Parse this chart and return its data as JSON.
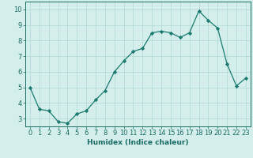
{
  "title": "",
  "xlabel": "Humidex (Indice chaleur)",
  "ylabel": "",
  "x": [
    0,
    1,
    2,
    3,
    4,
    5,
    6,
    7,
    8,
    9,
    10,
    11,
    12,
    13,
    14,
    15,
    16,
    17,
    18,
    19,
    20,
    21,
    22,
    23
  ],
  "y": [
    5.0,
    3.6,
    3.5,
    2.8,
    2.7,
    3.3,
    3.5,
    4.2,
    4.8,
    6.0,
    6.7,
    7.3,
    7.5,
    8.5,
    8.6,
    8.5,
    8.2,
    8.5,
    9.9,
    9.3,
    8.8,
    6.5,
    5.1,
    5.6
  ],
  "line_color": "#1a7a6e",
  "marker": "D",
  "marker_size": 2.2,
  "bg_color": "#d4eeec",
  "grid_color": "#b0d8d4",
  "ylim": [
    2.5,
    10.5
  ],
  "xlim": [
    -0.5,
    23.5
  ],
  "yticks": [
    3,
    4,
    5,
    6,
    7,
    8,
    9,
    10
  ],
  "xticks": [
    0,
    1,
    2,
    3,
    4,
    5,
    6,
    7,
    8,
    9,
    10,
    11,
    12,
    13,
    14,
    15,
    16,
    17,
    18,
    19,
    20,
    21,
    22,
    23
  ],
  "tick_color": "#1a6b60",
  "label_fontsize": 6.5,
  "tick_fontsize": 6.0,
  "linewidth": 0.9
}
